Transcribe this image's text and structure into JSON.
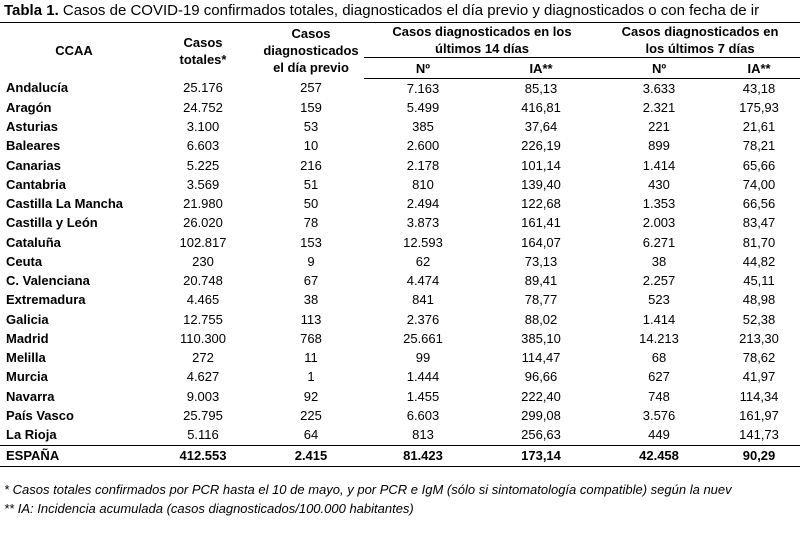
{
  "caption": {
    "label": "Tabla 1.",
    "text": " Casos de COVID-19 confirmados totales, diagnosticados el día previo y diagnosticados o con fecha de ir"
  },
  "headers": {
    "ccaa": "CCAA",
    "totales": "Casos totales*",
    "previo": "Casos diagnosticados el día previo",
    "group14": "Casos diagnosticados en los últimos 14 días",
    "group7": "Casos diagnosticados en los últimos 7 días",
    "n14": "Nº",
    "ia14": "IA**",
    "n7": "Nº",
    "ia7": "IA**"
  },
  "rows": [
    {
      "ccaa": "Andalucía",
      "totales": "25.176",
      "previo": "257",
      "n14": "7.163",
      "ia14": "85,13",
      "n7": "3.633",
      "ia7": "43,18"
    },
    {
      "ccaa": "Aragón",
      "totales": "24.752",
      "previo": "159",
      "n14": "5.499",
      "ia14": "416,81",
      "n7": "2.321",
      "ia7": "175,93"
    },
    {
      "ccaa": "Asturias",
      "totales": "3.100",
      "previo": "53",
      "n14": "385",
      "ia14": "37,64",
      "n7": "221",
      "ia7": "21,61"
    },
    {
      "ccaa": "Baleares",
      "totales": "6.603",
      "previo": "10",
      "n14": "2.600",
      "ia14": "226,19",
      "n7": "899",
      "ia7": "78,21"
    },
    {
      "ccaa": "Canarias",
      "totales": "5.225",
      "previo": "216",
      "n14": "2.178",
      "ia14": "101,14",
      "n7": "1.414",
      "ia7": "65,66"
    },
    {
      "ccaa": "Cantabria",
      "totales": "3.569",
      "previo": "51",
      "n14": "810",
      "ia14": "139,40",
      "n7": "430",
      "ia7": "74,00"
    },
    {
      "ccaa": "Castilla La Mancha",
      "totales": "21.980",
      "previo": "50",
      "n14": "2.494",
      "ia14": "122,68",
      "n7": "1.353",
      "ia7": "66,56"
    },
    {
      "ccaa": "Castilla y León",
      "totales": "26.020",
      "previo": "78",
      "n14": "3.873",
      "ia14": "161,41",
      "n7": "2.003",
      "ia7": "83,47"
    },
    {
      "ccaa": "Cataluña",
      "totales": "102.817",
      "previo": "153",
      "n14": "12.593",
      "ia14": "164,07",
      "n7": "6.271",
      "ia7": "81,70"
    },
    {
      "ccaa": "Ceuta",
      "totales": "230",
      "previo": "9",
      "n14": "62",
      "ia14": "73,13",
      "n7": "38",
      "ia7": "44,82"
    },
    {
      "ccaa": "C. Valenciana",
      "totales": "20.748",
      "previo": "67",
      "n14": "4.474",
      "ia14": "89,41",
      "n7": "2.257",
      "ia7": "45,11"
    },
    {
      "ccaa": "Extremadura",
      "totales": "4.465",
      "previo": "38",
      "n14": "841",
      "ia14": "78,77",
      "n7": "523",
      "ia7": "48,98"
    },
    {
      "ccaa": "Galicia",
      "totales": "12.755",
      "previo": "113",
      "n14": "2.376",
      "ia14": "88,02",
      "n7": "1.414",
      "ia7": "52,38"
    },
    {
      "ccaa": "Madrid",
      "totales": "110.300",
      "previo": "768",
      "n14": "25.661",
      "ia14": "385,10",
      "n7": "14.213",
      "ia7": "213,30"
    },
    {
      "ccaa": "Melilla",
      "totales": "272",
      "previo": "11",
      "n14": "99",
      "ia14": "114,47",
      "n7": "68",
      "ia7": "78,62"
    },
    {
      "ccaa": "Murcia",
      "totales": "4.627",
      "previo": "1",
      "n14": "1.444",
      "ia14": "96,66",
      "n7": "627",
      "ia7": "41,97"
    },
    {
      "ccaa": "Navarra",
      "totales": "9.003",
      "previo": "92",
      "n14": "1.455",
      "ia14": "222,40",
      "n7": "748",
      "ia7": "114,34"
    },
    {
      "ccaa": "País Vasco",
      "totales": "25.795",
      "previo": "225",
      "n14": "6.603",
      "ia14": "299,08",
      "n7": "3.576",
      "ia7": "161,97"
    },
    {
      "ccaa": "La Rioja",
      "totales": "5.116",
      "previo": "64",
      "n14": "813",
      "ia14": "256,63",
      "n7": "449",
      "ia7": "141,73"
    }
  ],
  "total": {
    "ccaa": "ESPAÑA",
    "totales": "412.553",
    "previo": "2.415",
    "n14": "81.423",
    "ia14": "173,14",
    "n7": "42.458",
    "ia7": "90,29"
  },
  "notes": [
    "* Casos totales confirmados por PCR hasta el 10 de mayo, y por PCR e IgM (sólo si sintomatología compatible) según la nuev",
    "** IA: Incidencia acumulada (casos diagnosticados/100.000 habitantes)"
  ]
}
